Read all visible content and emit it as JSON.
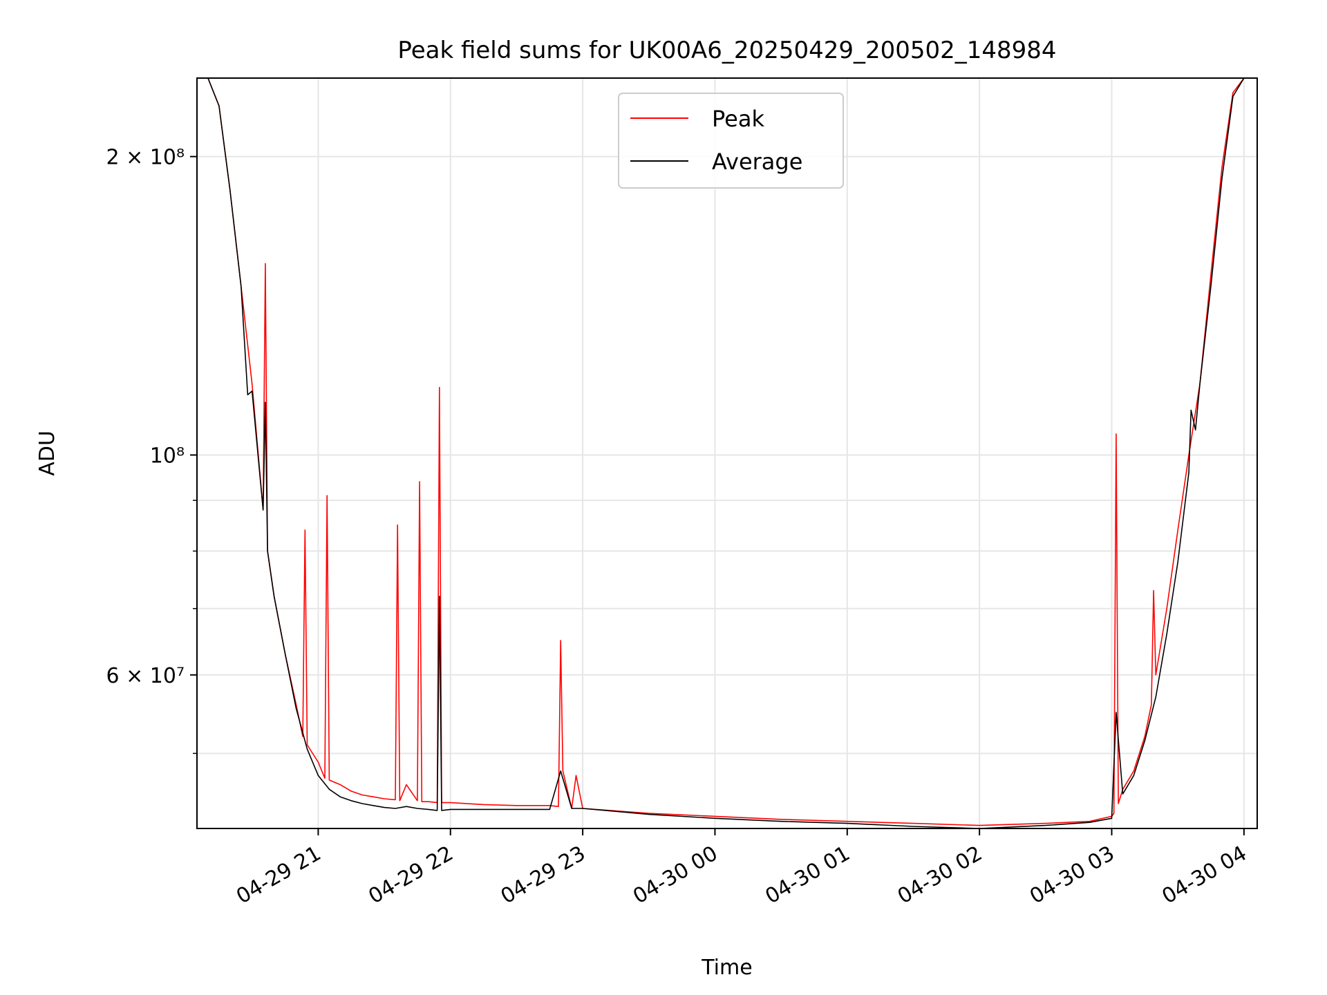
{
  "chart_data": {
    "type": "line",
    "title": "Peak field sums for UK00A6_20250429_200502_148984",
    "xlabel": "Time",
    "ylabel": "ADU",
    "yscale": "log",
    "ylim": [
      42000000,
      240000000
    ],
    "xlim": [
      "2025-04-29 20:05",
      "2025-04-30 04:06"
    ],
    "grid": true,
    "legend_position": "top-center",
    "x_ticks": [
      {
        "label": "04-29 21",
        "t": "2025-04-29 21:00"
      },
      {
        "label": "04-29 22",
        "t": "2025-04-29 22:00"
      },
      {
        "label": "04-29 23",
        "t": "2025-04-29 23:00"
      },
      {
        "label": "04-30 00",
        "t": "2025-04-30 00:00"
      },
      {
        "label": "04-30 01",
        "t": "2025-04-30 01:00"
      },
      {
        "label": "04-30 02",
        "t": "2025-04-30 02:00"
      },
      {
        "label": "04-30 03",
        "t": "2025-04-30 03:00"
      },
      {
        "label": "04-30 04",
        "t": "2025-04-30 04:00"
      }
    ],
    "y_ticks": [
      {
        "label": "2 × 10⁸",
        "value": 200000000
      },
      {
        "label": "10⁸",
        "value": 100000000
      },
      {
        "label": "6 × 10⁷",
        "value": 60000000
      }
    ],
    "y_minor_ticks": [
      50000000,
      70000000,
      80000000,
      90000000
    ],
    "series": [
      {
        "name": "Peak",
        "color": "#ff0000",
        "x": [
          "2025-04-29 20:05",
          "2025-04-29 20:10",
          "2025-04-29 20:15",
          "2025-04-29 20:20",
          "2025-04-29 20:25",
          "2025-04-29 20:30",
          "2025-04-29 20:35",
          "2025-04-29 20:36",
          "2025-04-29 20:37",
          "2025-04-29 20:40",
          "2025-04-29 20:45",
          "2025-04-29 20:50",
          "2025-04-29 20:53",
          "2025-04-29 20:54",
          "2025-04-29 20:55",
          "2025-04-29 21:00",
          "2025-04-29 21:03",
          "2025-04-29 21:04",
          "2025-04-29 21:05",
          "2025-04-29 21:10",
          "2025-04-29 21:15",
          "2025-04-29 21:20",
          "2025-04-29 21:25",
          "2025-04-29 21:30",
          "2025-04-29 21:35",
          "2025-04-29 21:36",
          "2025-04-29 21:37",
          "2025-04-29 21:40",
          "2025-04-29 21:45",
          "2025-04-29 21:46",
          "2025-04-29 21:47",
          "2025-04-29 21:50",
          "2025-04-29 21:54",
          "2025-04-29 21:55",
          "2025-04-29 21:56",
          "2025-04-29 22:00",
          "2025-04-29 22:15",
          "2025-04-29 22:30",
          "2025-04-29 22:45",
          "2025-04-29 22:49",
          "2025-04-29 22:50",
          "2025-04-29 22:51",
          "2025-04-29 22:55",
          "2025-04-29 22:57",
          "2025-04-29 23:00",
          "2025-04-29 23:30",
          "2025-04-30 00:00",
          "2025-04-30 00:30",
          "2025-04-30 01:00",
          "2025-04-30 01:30",
          "2025-04-30 02:00",
          "2025-04-30 02:30",
          "2025-04-30 02:50",
          "2025-04-30 03:00",
          "2025-04-30 03:01",
          "2025-04-30 03:02",
          "2025-04-30 03:03",
          "2025-04-30 03:05",
          "2025-04-30 03:10",
          "2025-04-30 03:15",
          "2025-04-30 03:18",
          "2025-04-30 03:19",
          "2025-04-30 03:20",
          "2025-04-30 03:25",
          "2025-04-30 03:30",
          "2025-04-30 03:35",
          "2025-04-30 03:40",
          "2025-04-30 03:45",
          "2025-04-30 03:50",
          "2025-04-30 03:55",
          "2025-04-30 04:00",
          "2025-04-30 04:06"
        ],
        "y": [
          240000000,
          240000000,
          225000000,
          185000000,
          148000000,
          118000000,
          88000000,
          156000000,
          80000000,
          72000000,
          63000000,
          56000000,
          52000000,
          84000000,
          51000000,
          49000000,
          47200000,
          91000000,
          47000000,
          46500000,
          45800000,
          45400000,
          45200000,
          45000000,
          44900000,
          85000000,
          44800000,
          46500000,
          44800000,
          94000000,
          44700000,
          44700000,
          44600000,
          117000000,
          44600000,
          44600000,
          44400000,
          44300000,
          44300000,
          44200000,
          65000000,
          48000000,
          44000000,
          47500000,
          44000000,
          43500000,
          43200000,
          42900000,
          42700000,
          42500000,
          42300000,
          42500000,
          42700000,
          43200000,
          43500000,
          105000000,
          44500000,
          46000000,
          48000000,
          52000000,
          56000000,
          73000000,
          60000000,
          70000000,
          84000000,
          100000000,
          118000000,
          152000000,
          195000000,
          232000000,
          240000000,
          240000000
        ]
      },
      {
        "name": "Average",
        "color": "#000000",
        "x": [
          "2025-04-29 20:05",
          "2025-04-29 20:10",
          "2025-04-29 20:15",
          "2025-04-29 20:20",
          "2025-04-29 20:25",
          "2025-04-29 20:28",
          "2025-04-29 20:30",
          "2025-04-29 20:35",
          "2025-04-29 20:36",
          "2025-04-29 20:37",
          "2025-04-29 20:40",
          "2025-04-29 20:45",
          "2025-04-29 20:50",
          "2025-04-29 20:55",
          "2025-04-29 21:00",
          "2025-04-29 21:05",
          "2025-04-29 21:10",
          "2025-04-29 21:15",
          "2025-04-29 21:20",
          "2025-04-29 21:25",
          "2025-04-29 21:30",
          "2025-04-29 21:35",
          "2025-04-29 21:40",
          "2025-04-29 21:45",
          "2025-04-29 21:50",
          "2025-04-29 21:54",
          "2025-04-29 21:55",
          "2025-04-29 21:56",
          "2025-04-29 22:00",
          "2025-04-29 22:15",
          "2025-04-29 22:30",
          "2025-04-29 22:45",
          "2025-04-29 22:50",
          "2025-04-29 22:55",
          "2025-04-29 23:00",
          "2025-04-29 23:30",
          "2025-04-30 00:00",
          "2025-04-30 00:30",
          "2025-04-30 01:00",
          "2025-04-30 01:30",
          "2025-04-30 02:00",
          "2025-04-30 02:30",
          "2025-04-30 02:50",
          "2025-04-30 03:00",
          "2025-04-30 03:02",
          "2025-04-30 03:05",
          "2025-04-30 03:10",
          "2025-04-30 03:15",
          "2025-04-30 03:20",
          "2025-04-30 03:25",
          "2025-04-30 03:30",
          "2025-04-30 03:35",
          "2025-04-30 03:36",
          "2025-04-30 03:38",
          "2025-04-30 03:40",
          "2025-04-30 03:45",
          "2025-04-30 03:50",
          "2025-04-30 03:55",
          "2025-04-30 04:00",
          "2025-04-30 04:06"
        ],
        "y": [
          240000000,
          240000000,
          225000000,
          185000000,
          148000000,
          115000000,
          116000000,
          88000000,
          113000000,
          80000000,
          72000000,
          63000000,
          55500000,
          50500000,
          47500000,
          46000000,
          45200000,
          44800000,
          44500000,
          44300000,
          44100000,
          44000000,
          44200000,
          44000000,
          43900000,
          43800000,
          72000000,
          43800000,
          43900000,
          43900000,
          43900000,
          43900000,
          48000000,
          44000000,
          44000000,
          43400000,
          43000000,
          42700000,
          42500000,
          42200000,
          42000000,
          42300000,
          42600000,
          43000000,
          55000000,
          45500000,
          47500000,
          51500000,
          57000000,
          66000000,
          78000000,
          96000000,
          111000000,
          106000000,
          118000000,
          148000000,
          190000000,
          230000000,
          240000000,
          240000000
        ]
      }
    ]
  }
}
